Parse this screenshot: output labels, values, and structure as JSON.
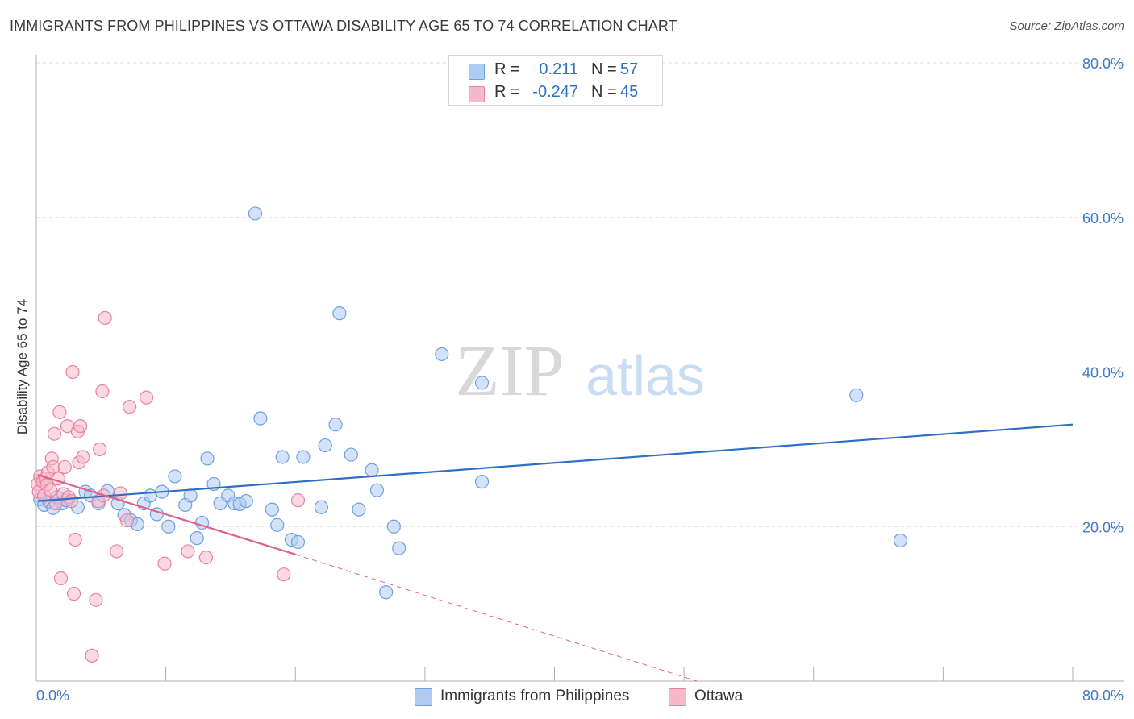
{
  "header": {
    "title": "IMMIGRANTS FROM PHILIPPINES VS OTTAWA DISABILITY AGE 65 TO 74 CORRELATION CHART",
    "source": "Source: ZipAtlas.com"
  },
  "watermark": {
    "zip": "ZIP",
    "atlas": "atlas"
  },
  "legend_top": {
    "rows": [
      {
        "r_label": "R =",
        "r_value": "0.211",
        "n_label": "N =",
        "n_value": "57"
      },
      {
        "r_label": "R =",
        "r_value": "-0.247",
        "n_label": "N =",
        "n_value": "45"
      }
    ]
  },
  "legend_bottom": {
    "items": [
      {
        "label": "Immigrants from Philippines"
      },
      {
        "label": "Ottawa"
      }
    ]
  },
  "colors": {
    "blue_fill": "#aecbf2",
    "blue_stroke": "#6fa0e0",
    "blue_line": "#2f6ec7",
    "pink_fill": "#f6b9cc",
    "pink_stroke": "#e8829f",
    "pink_line": "#e0608a",
    "tick_label": "#3d78cc",
    "grid": "#dddddd"
  },
  "chart_data": {
    "type": "scatter",
    "title": "IMMIGRANTS FROM PHILIPPINES VS OTTAWA DISABILITY AGE 65 TO 74 CORRELATION CHART",
    "xlabel": "",
    "ylabel": "Disability Age 65 to 74",
    "xlim": [
      0,
      80
    ],
    "ylim": [
      0,
      80
    ],
    "x_tick_labels": [
      "0.0%",
      "80.0%"
    ],
    "y_ticks": [
      20,
      40,
      60,
      80
    ],
    "y_tick_labels": [
      "20.0%",
      "40.0%",
      "60.0%",
      "80.0%"
    ],
    "grid": true,
    "legend_placement": "bottom-center",
    "series": [
      {
        "name": "Immigrants from Philippines",
        "color": "#aecbf2",
        "r": 0.211,
        "n": 57,
        "trend": {
          "x": [
            0.1,
            80
          ],
          "y": [
            23.3,
            33.2
          ]
        },
        "points": [
          [
            0.3,
            23.5
          ],
          [
            0.6,
            22.8
          ],
          [
            1.0,
            23.2
          ],
          [
            1.3,
            22.4
          ],
          [
            1.6,
            23.8
          ],
          [
            2.0,
            23.0
          ],
          [
            2.3,
            23.4
          ],
          [
            3.2,
            22.5
          ],
          [
            3.8,
            24.5
          ],
          [
            4.2,
            24.0
          ],
          [
            4.8,
            23.0
          ],
          [
            5.5,
            24.6
          ],
          [
            6.3,
            23.0
          ],
          [
            6.8,
            21.5
          ],
          [
            7.3,
            20.8
          ],
          [
            7.8,
            20.3
          ],
          [
            8.3,
            23.0
          ],
          [
            8.8,
            24.0
          ],
          [
            9.3,
            21.6
          ],
          [
            9.7,
            24.5
          ],
          [
            10.2,
            20.0
          ],
          [
            10.7,
            26.5
          ],
          [
            11.5,
            22.8
          ],
          [
            11.9,
            24.0
          ],
          [
            12.4,
            18.5
          ],
          [
            12.8,
            20.5
          ],
          [
            13.2,
            28.8
          ],
          [
            13.7,
            25.5
          ],
          [
            14.2,
            23.0
          ],
          [
            14.8,
            24.0
          ],
          [
            15.3,
            23.0
          ],
          [
            15.7,
            22.9
          ],
          [
            16.2,
            23.3
          ],
          [
            16.9,
            60.5
          ],
          [
            17.3,
            34.0
          ],
          [
            18.2,
            22.2
          ],
          [
            18.6,
            20.2
          ],
          [
            19.0,
            29.0
          ],
          [
            19.7,
            18.3
          ],
          [
            20.2,
            18.0
          ],
          [
            20.6,
            29.0
          ],
          [
            22.0,
            22.5
          ],
          [
            22.3,
            30.5
          ],
          [
            23.1,
            33.2
          ],
          [
            23.4,
            47.6
          ],
          [
            24.3,
            29.3
          ],
          [
            24.9,
            22.2
          ],
          [
            25.9,
            27.3
          ],
          [
            26.3,
            24.7
          ],
          [
            27.0,
            11.5
          ],
          [
            27.6,
            20.0
          ],
          [
            28.0,
            17.2
          ],
          [
            31.3,
            42.3
          ],
          [
            34.4,
            38.6
          ],
          [
            34.4,
            25.8
          ],
          [
            63.3,
            37.0
          ],
          [
            66.7,
            18.2
          ]
        ]
      },
      {
        "name": "Ottawa",
        "color": "#f6b9cc",
        "r": -0.247,
        "n": 45,
        "trend": {
          "x": [
            0.1,
            20.0
          ],
          "y": [
            26.7,
            16.4
          ]
        },
        "trend_dashed": {
          "x": [
            20.0,
            51.0
          ],
          "y": [
            16.4,
            0.0
          ]
        },
        "points": [
          [
            0.1,
            25.5
          ],
          [
            0.2,
            24.5
          ],
          [
            0.3,
            26.5
          ],
          [
            0.5,
            25.8
          ],
          [
            0.6,
            24.0
          ],
          [
            0.7,
            26.2
          ],
          [
            0.8,
            25.4
          ],
          [
            0.9,
            27.0
          ],
          [
            1.1,
            24.7
          ],
          [
            1.2,
            28.8
          ],
          [
            1.3,
            27.7
          ],
          [
            1.4,
            32.0
          ],
          [
            1.5,
            23.0
          ],
          [
            1.7,
            26.2
          ],
          [
            1.8,
            34.8
          ],
          [
            1.9,
            13.3
          ],
          [
            2.1,
            24.2
          ],
          [
            2.2,
            27.7
          ],
          [
            2.4,
            33.0
          ],
          [
            2.5,
            23.8
          ],
          [
            2.7,
            23.3
          ],
          [
            2.8,
            40.0
          ],
          [
            2.9,
            11.3
          ],
          [
            3.0,
            18.3
          ],
          [
            3.2,
            32.3
          ],
          [
            3.3,
            28.3
          ],
          [
            3.4,
            33.0
          ],
          [
            3.6,
            29.0
          ],
          [
            4.3,
            3.3
          ],
          [
            4.6,
            10.5
          ],
          [
            4.8,
            23.3
          ],
          [
            4.9,
            30.0
          ],
          [
            5.1,
            37.5
          ],
          [
            5.2,
            24.0
          ],
          [
            5.3,
            47.0
          ],
          [
            6.2,
            16.8
          ],
          [
            6.5,
            24.3
          ],
          [
            7.0,
            20.8
          ],
          [
            7.2,
            35.5
          ],
          [
            8.5,
            36.7
          ],
          [
            9.9,
            15.2
          ],
          [
            11.7,
            16.8
          ],
          [
            13.1,
            16.0
          ],
          [
            19.1,
            13.8
          ],
          [
            20.2,
            23.4
          ]
        ]
      }
    ]
  }
}
